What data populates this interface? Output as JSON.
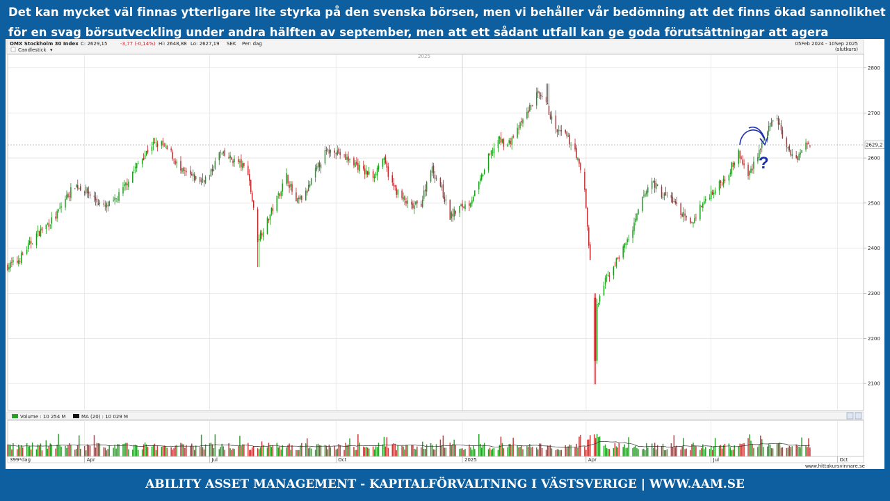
{
  "headline": "Det kan mycket väl finnas ytterligare lite styrka på den svenska börsen, men vi behåller vår bedömning att det finns ökad sannolikhet för en svag börsutveckling under andra hälften av september, men att ett sådant utfall kan ge goda förutsättningar att agera offensivt på köpsidan...",
  "footer": "ABILITY ASSET MANAGEMENT -  KAPITALFÖRVALTNING I VÄSTSVERIGE   |   WWW.AAM.SE",
  "colors": {
    "up": "#1a9a1a",
    "down": "#c0282c",
    "vol_up": "#2aa02a",
    "vol_down": "#c83a3a",
    "arrow": "#1a2fb0",
    "frame": "#0d5fa0"
  },
  "chart_data": {
    "type": "candlestick",
    "instrument": "OMX Stockholm 30 Index",
    "quote": {
      "close_label": "C: 2629,15",
      "change": "-3,77 (-0,14%)",
      "high": "Hi: 2648,88",
      "low": "Lo: 2627,19",
      "currency": "SEK",
      "period": "Per: dag"
    },
    "chart_style": "Candlestick",
    "date_range": "05Feb 2024 - 10Sep 2025",
    "date_range_note": "(slutkurs)",
    "year_label": "2025",
    "last_price_label": "2629,2",
    "last_price": 2629.2,
    "ylim": [
      2040,
      2830
    ],
    "y_ticks": [
      2100,
      2200,
      2300,
      2400,
      2500,
      2600,
      2700,
      2800
    ],
    "x_tick_labels": [
      "399*dag",
      "Apr",
      "Jul",
      "Oct",
      "2025",
      "Apr",
      "Jul",
      "Oct"
    ],
    "weekly_close_path": [
      [
        "2024-02-05",
        2360
      ],
      [
        "2024-02-12",
        2370
      ],
      [
        "2024-02-19",
        2400
      ],
      [
        "2024-02-26",
        2430
      ],
      [
        "2024-03-04",
        2450
      ],
      [
        "2024-03-11",
        2470
      ],
      [
        "2024-03-18",
        2510
      ],
      [
        "2024-03-25",
        2540
      ],
      [
        "2024-04-01",
        2530
      ],
      [
        "2024-04-08",
        2510
      ],
      [
        "2024-04-15",
        2490
      ],
      [
        "2024-04-22",
        2500
      ],
      [
        "2024-04-29",
        2530
      ],
      [
        "2024-05-06",
        2570
      ],
      [
        "2024-05-13",
        2600
      ],
      [
        "2024-05-20",
        2630
      ],
      [
        "2024-05-27",
        2630
      ],
      [
        "2024-06-03",
        2610
      ],
      [
        "2024-06-10",
        2570
      ],
      [
        "2024-06-17",
        2560
      ],
      [
        "2024-06-24",
        2550
      ],
      [
        "2024-07-01",
        2560
      ],
      [
        "2024-07-08",
        2610
      ],
      [
        "2024-07-15",
        2600
      ],
      [
        "2024-07-22",
        2590
      ],
      [
        "2024-07-29",
        2570
      ],
      [
        "2024-08-05",
        2420
      ],
      [
        "2024-08-12",
        2460
      ],
      [
        "2024-08-19",
        2510
      ],
      [
        "2024-08-26",
        2560
      ],
      [
        "2024-09-02",
        2500
      ],
      [
        "2024-09-09",
        2520
      ],
      [
        "2024-09-16",
        2570
      ],
      [
        "2024-09-23",
        2610
      ],
      [
        "2024-09-30",
        2620
      ],
      [
        "2024-10-07",
        2600
      ],
      [
        "2024-10-14",
        2590
      ],
      [
        "2024-10-21",
        2570
      ],
      [
        "2024-10-28",
        2560
      ],
      [
        "2024-11-04",
        2600
      ],
      [
        "2024-11-11",
        2540
      ],
      [
        "2024-11-18",
        2510
      ],
      [
        "2024-11-25",
        2490
      ],
      [
        "2024-12-02",
        2500
      ],
      [
        "2024-12-09",
        2580
      ],
      [
        "2024-12-16",
        2540
      ],
      [
        "2024-12-23",
        2470
      ],
      [
        "2024-12-30",
        2490
      ],
      [
        "2025-01-06",
        2500
      ],
      [
        "2025-01-13",
        2540
      ],
      [
        "2025-01-20",
        2600
      ],
      [
        "2025-01-27",
        2640
      ],
      [
        "2025-02-03",
        2630
      ],
      [
        "2025-02-10",
        2660
      ],
      [
        "2025-02-17",
        2700
      ],
      [
        "2025-02-24",
        2740
      ],
      [
        "2025-03-03",
        2720
      ],
      [
        "2025-03-10",
        2660
      ],
      [
        "2025-03-17",
        2650
      ],
      [
        "2025-03-24",
        2620
      ],
      [
        "2025-03-31",
        2530
      ],
      [
        "2025-04-07",
        2250
      ],
      [
        "2025-04-14",
        2320
      ],
      [
        "2025-04-21",
        2360
      ],
      [
        "2025-04-28",
        2400
      ],
      [
        "2025-05-05",
        2440
      ],
      [
        "2025-05-12",
        2510
      ],
      [
        "2025-05-19",
        2550
      ],
      [
        "2025-05-26",
        2520
      ],
      [
        "2025-06-02",
        2510
      ],
      [
        "2025-06-09",
        2480
      ],
      [
        "2025-06-16",
        2450
      ],
      [
        "2025-06-23",
        2490
      ],
      [
        "2025-06-30",
        2520
      ],
      [
        "2025-07-07",
        2540
      ],
      [
        "2025-07-14",
        2570
      ],
      [
        "2025-07-21",
        2610
      ],
      [
        "2025-07-28",
        2560
      ],
      [
        "2025-08-04",
        2610
      ],
      [
        "2025-08-11",
        2660
      ],
      [
        "2025-08-18",
        2690
      ],
      [
        "2025-08-25",
        2620
      ],
      [
        "2025-09-01",
        2600
      ],
      [
        "2025-09-08",
        2629
      ]
    ],
    "extremes": {
      "high": [
        [
          "2025-03-03",
          2765
        ]
      ],
      "low": [
        [
          "2025-04-07",
          2098
        ],
        [
          "2024-08-05",
          2358
        ]
      ]
    },
    "volume_panel": {
      "label": "Volume : 10 254 M",
      "ma_label": "MA (20) : 10 029 M"
    },
    "source": "www.hittakursvinnare.se",
    "annotation": "?"
  }
}
